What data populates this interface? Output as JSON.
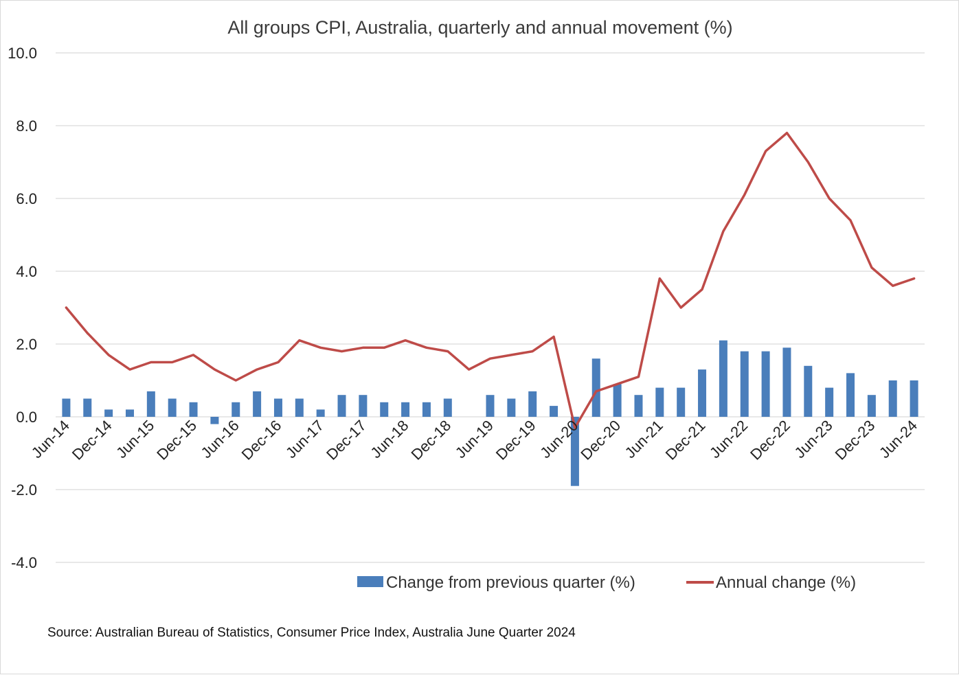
{
  "chart_data": {
    "type": "bar",
    "title": "All groups CPI, Australia, quarterly and annual movement (%)",
    "xlabel": "",
    "ylabel": "",
    "ylim": [
      -4,
      10
    ],
    "yticks": [
      "10.0",
      "8.0",
      "6.0",
      "4.0",
      "2.0",
      "0.0",
      "-2.0",
      "-4.0"
    ],
    "ytick_values": [
      10,
      8,
      6,
      4,
      2,
      0,
      -2,
      -4
    ],
    "categories": [
      "Jun-14",
      "Sep-14",
      "Dec-14",
      "Mar-15",
      "Jun-15",
      "Sep-15",
      "Dec-15",
      "Mar-16",
      "Jun-16",
      "Sep-16",
      "Dec-16",
      "Mar-17",
      "Jun-17",
      "Sep-17",
      "Dec-17",
      "Mar-18",
      "Jun-18",
      "Sep-18",
      "Dec-18",
      "Mar-19",
      "Jun-19",
      "Sep-19",
      "Dec-19",
      "Mar-20",
      "Jun-20",
      "Sep-20",
      "Dec-20",
      "Mar-21",
      "Jun-21",
      "Sep-21",
      "Dec-21",
      "Mar-22",
      "Jun-22",
      "Sep-22",
      "Dec-22",
      "Mar-23",
      "Jun-23",
      "Sep-23",
      "Dec-23",
      "Mar-24",
      "Jun-24"
    ],
    "xtick_labels": [
      "Jun-14",
      "Dec-14",
      "Jun-15",
      "Dec-15",
      "Jun-16",
      "Dec-16",
      "Jun-17",
      "Dec-17",
      "Jun-18",
      "Dec-18",
      "Jun-19",
      "Dec-19",
      "Jun-20",
      "Dec-20",
      "Jun-21",
      "Dec-21",
      "Jun-22",
      "Dec-22",
      "Jun-23",
      "Dec-23",
      "Jun-24"
    ],
    "grid": true,
    "legend_position": "bottom",
    "series": [
      {
        "name": "Change from previous quarter (%)",
        "type": "bar",
        "color": "#4a7ebb",
        "values": [
          0.5,
          0.5,
          0.2,
          0.2,
          0.7,
          0.5,
          0.4,
          -0.2,
          0.4,
          0.7,
          0.5,
          0.5,
          0.2,
          0.6,
          0.6,
          0.4,
          0.4,
          0.4,
          0.5,
          0.0,
          0.6,
          0.5,
          0.7,
          0.3,
          -1.9,
          1.6,
          0.9,
          0.6,
          0.8,
          0.8,
          1.3,
          2.1,
          1.8,
          1.8,
          1.9,
          1.4,
          0.8,
          1.2,
          0.6,
          1.0,
          1.0
        ]
      },
      {
        "name": "Annual change (%)",
        "type": "line",
        "color": "#be4b48",
        "values": [
          3.0,
          2.3,
          1.7,
          1.3,
          1.5,
          1.5,
          1.7,
          1.3,
          1.0,
          1.3,
          1.5,
          2.1,
          1.9,
          1.8,
          1.9,
          1.9,
          2.1,
          1.9,
          1.8,
          1.3,
          1.6,
          1.7,
          1.8,
          2.2,
          -0.3,
          0.7,
          0.9,
          1.1,
          3.8,
          3.0,
          3.5,
          5.1,
          6.1,
          7.3,
          7.8,
          7.0,
          6.0,
          5.4,
          4.1,
          3.6,
          3.8
        ]
      }
    ]
  },
  "source_note": "Source: Australian Bureau of Statistics, Consumer Price Index, Australia June Quarter 2024"
}
